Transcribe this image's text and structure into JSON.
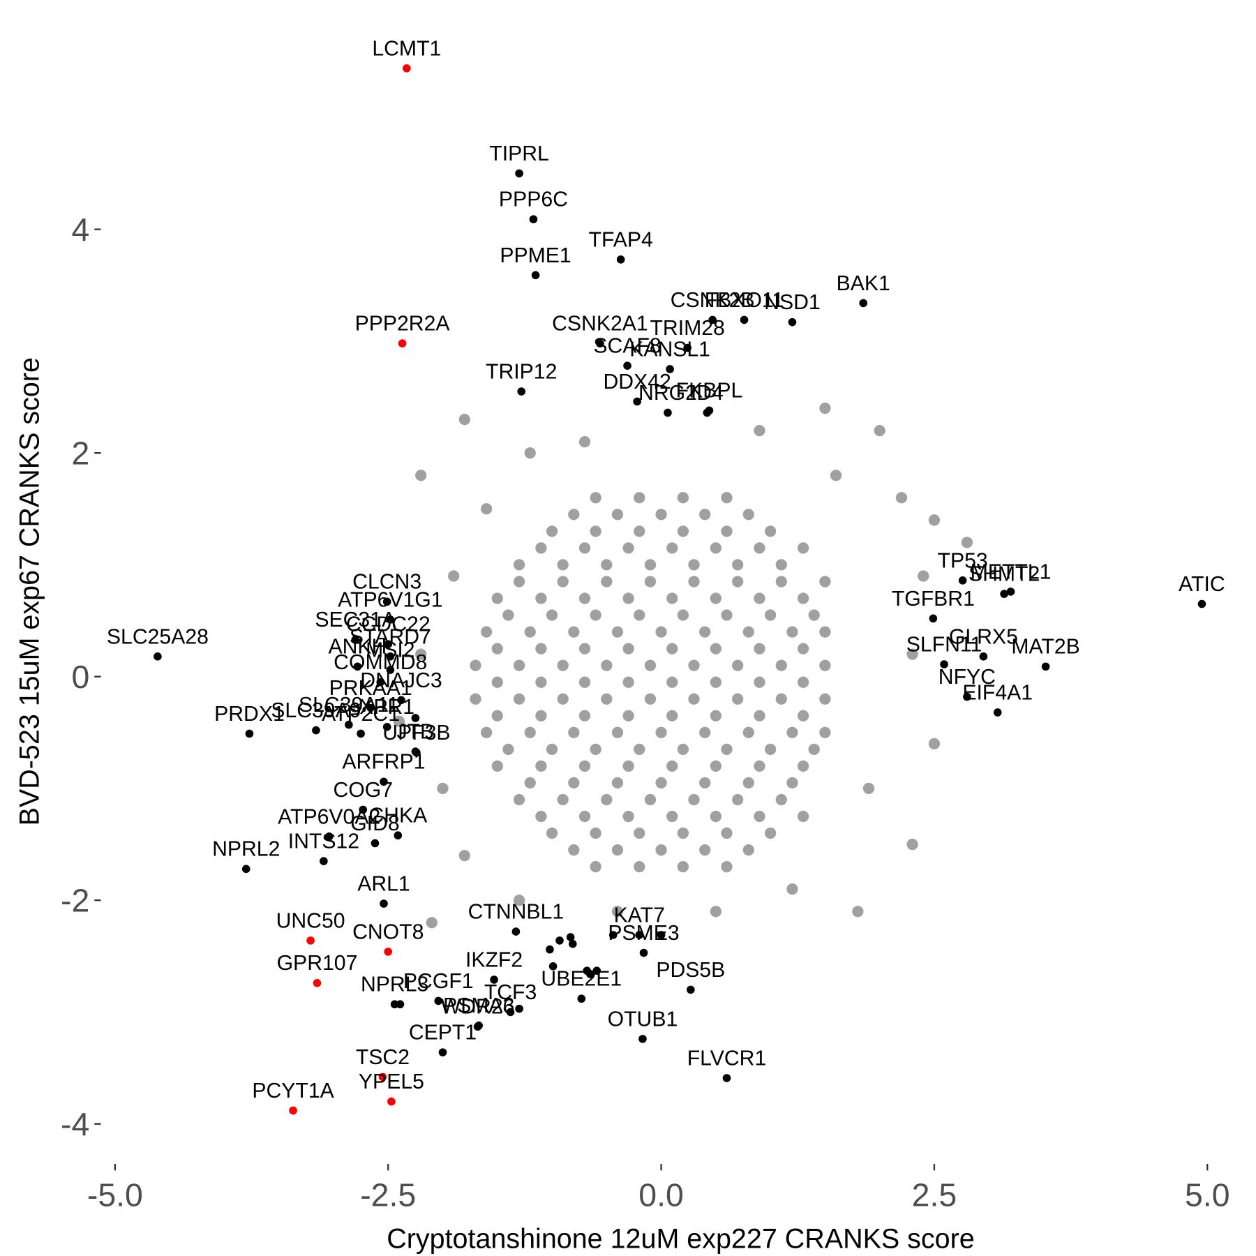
{
  "chart_data": {
    "type": "scatter",
    "x_label": "Cryptotanshinone 12uM exp227 CRANKS score",
    "y_label": "BVD-523 15uM exp67 CRANKS score",
    "xlim": [
      -5.1,
      5.05
    ],
    "ylim": [
      -4.3,
      5.65
    ],
    "xticks": [
      {
        "value": -5,
        "label": "-5.0"
      },
      {
        "value": -2.5,
        "label": "-2.5"
      },
      {
        "value": 0,
        "label": "0.0"
      },
      {
        "value": 2.5,
        "label": "2.5"
      },
      {
        "value": 5,
        "label": "5.0"
      }
    ],
    "yticks": [
      -4,
      -2,
      0,
      2,
      4
    ],
    "grid": false,
    "series": [
      {
        "color": "#a0a0a0",
        "x": [
          -0.6,
          -0.2,
          0.2,
          0.6,
          -1.0,
          -0.6,
          -0.2,
          0.2,
          0.6,
          1.0,
          -1.3,
          -0.9,
          -0.5,
          -0.1,
          0.3,
          0.7,
          1.1,
          -1.5,
          -1.1,
          -0.7,
          -0.3,
          0.1,
          0.5,
          0.9,
          1.3,
          -1.6,
          -1.2,
          -0.8,
          -0.4,
          0,
          0.4,
          0.8,
          1.2,
          1.5,
          -1.7,
          -1.3,
          -0.9,
          -0.5,
          -0.1,
          0.3,
          0.7,
          1.1,
          1.5,
          -1.7,
          -1.3,
          -0.9,
          -0.5,
          -0.1,
          0.3,
          0.7,
          1.1,
          1.5,
          -1.6,
          -1.2,
          -0.8,
          -0.4,
          0,
          0.4,
          0.8,
          1.2,
          1.5,
          -1.5,
          -1.1,
          -0.7,
          -0.3,
          0.1,
          0.5,
          0.9,
          1.3,
          -1.3,
          -0.9,
          -0.5,
          -0.1,
          0.3,
          0.7,
          1.1,
          -1.0,
          -0.6,
          -0.2,
          0.2,
          0.6,
          1.0,
          -0.6,
          -0.2,
          0.2,
          0.6,
          -0.8,
          -0.4,
          0,
          0.4,
          0.8,
          -1.1,
          -0.7,
          -0.3,
          0.1,
          0.5,
          0.9,
          1.3,
          -1.3,
          -0.9,
          -0.5,
          -0.1,
          0.3,
          0.7,
          1.1,
          1.5,
          -1.4,
          -1.0,
          -0.6,
          -0.2,
          0.2,
          0.6,
          1.0,
          1.4,
          -1.5,
          -1.1,
          -0.7,
          -0.3,
          0.1,
          0.5,
          0.9,
          1.3,
          -1.5,
          -1.1,
          -0.7,
          -0.3,
          0.1,
          0.5,
          0.9,
          1.3,
          -1.5,
          -1.1,
          -0.7,
          -0.3,
          0.1,
          0.5,
          0.9,
          1.3,
          -1.4,
          -1.0,
          -0.6,
          -0.2,
          0.2,
          0.6,
          1.0,
          1.4,
          -1.2,
          -0.8,
          -0.4,
          0,
          0.4,
          0.8,
          1.2,
          -1.1,
          -0.7,
          -0.3,
          0.1,
          0.5,
          0.9,
          1.3,
          -0.8,
          -0.4,
          0,
          0.4,
          0.8,
          -1.8,
          -1.2,
          -0.7,
          0.9,
          1.5,
          2.0,
          2.2,
          2.5,
          2.8,
          -2.2,
          -1.9,
          -2.2,
          -2.4,
          -2.0,
          -1.8,
          -2.1,
          -1.3,
          0.5,
          1.2,
          1.8,
          2.3,
          2.5,
          2.3,
          2.4,
          1.9,
          -0.4,
          1.6,
          -1.6
        ],
        "y": [
          1.6,
          1.6,
          1.6,
          1.6,
          1.3,
          1.3,
          1.3,
          1.3,
          1.3,
          1.3,
          1.0,
          1.0,
          1.0,
          1.0,
          1.0,
          1.0,
          1.0,
          0.7,
          0.7,
          0.7,
          0.7,
          0.7,
          0.7,
          0.7,
          0.7,
          0.4,
          0.4,
          0.4,
          0.4,
          0.4,
          0.4,
          0.4,
          0.4,
          0.4,
          0.1,
          0.1,
          0.1,
          0.1,
          0.1,
          0.1,
          0.1,
          0.1,
          0.1,
          -0.2,
          -0.2,
          -0.2,
          -0.2,
          -0.2,
          -0.2,
          -0.2,
          -0.2,
          -0.2,
          -0.5,
          -0.5,
          -0.5,
          -0.5,
          -0.5,
          -0.5,
          -0.5,
          -0.5,
          -0.5,
          -0.8,
          -0.8,
          -0.8,
          -0.8,
          -0.8,
          -0.8,
          -0.8,
          -0.8,
          -1.1,
          -1.1,
          -1.1,
          -1.1,
          -1.1,
          -1.1,
          -1.1,
          -1.4,
          -1.4,
          -1.4,
          -1.4,
          -1.4,
          -1.4,
          -1.7,
          -1.7,
          -1.7,
          -1.7,
          1.45,
          1.45,
          1.45,
          1.45,
          1.45,
          1.15,
          1.15,
          1.15,
          1.15,
          1.15,
          1.15,
          1.15,
          0.85,
          0.85,
          0.85,
          0.85,
          0.85,
          0.85,
          0.85,
          0.85,
          0.55,
          0.55,
          0.55,
          0.55,
          0.55,
          0.55,
          0.55,
          0.55,
          0.25,
          0.25,
          0.25,
          0.25,
          0.25,
          0.25,
          0.25,
          0.25,
          -0.05,
          -0.05,
          -0.05,
          -0.05,
          -0.05,
          -0.05,
          -0.05,
          -0.05,
          -0.35,
          -0.35,
          -0.35,
          -0.35,
          -0.35,
          -0.35,
          -0.35,
          -0.35,
          -0.65,
          -0.65,
          -0.65,
          -0.65,
          -0.65,
          -0.65,
          -0.65,
          -0.65,
          -0.95,
          -0.95,
          -0.95,
          -0.95,
          -0.95,
          -0.95,
          -0.95,
          -1.25,
          -1.25,
          -1.25,
          -1.25,
          -1.25,
          -1.25,
          -1.25,
          -1.55,
          -1.55,
          -1.55,
          -1.55,
          -1.55,
          2.3,
          2.0,
          2.1,
          2.2,
          2.4,
          2.2,
          1.6,
          1.4,
          1.2,
          1.8,
          0.9,
          0.2,
          -0.4,
          -1.0,
          -1.6,
          -2.2,
          -2.0,
          -2.1,
          -1.9,
          -2.1,
          -1.5,
          -0.6,
          0.2,
          0.9,
          -1.0,
          -2.1,
          1.8,
          1.5
        ]
      },
      {
        "color": "#000000",
        "x": [
          -1.3,
          -1.17,
          -0.37,
          -1.15,
          0.47,
          0.76,
          1.2,
          1.85,
          -0.56,
          0.24,
          -0.31,
          0.08,
          -1.28,
          -0.22,
          0.06,
          0.42,
          0.44,
          2.76,
          3.2,
          3.14,
          2.49,
          4.95,
          2.95,
          2.59,
          3.52,
          2.8,
          3.08,
          -2.51,
          -2.48,
          -2.5,
          -2.48,
          -2.8,
          -2.78,
          -2.48,
          -2.57,
          -4.61,
          -2.66,
          -2.38,
          -2.25,
          -3.16,
          -2.86,
          -2.75,
          -2.51,
          -3.77,
          -2.25,
          -2.24,
          -2.54,
          -2.73,
          -2.41,
          -3.04,
          -2.62,
          -3.09,
          -3.8,
          -2.54,
          -2.44,
          -2.39,
          -1.33,
          -0.2,
          0.0,
          -0.16,
          -2.04,
          -1.53,
          0.27,
          -0.73,
          -1.38,
          -1.3,
          -1.68,
          -1.67,
          -0.17,
          -2.0,
          0.6,
          -1.02,
          -0.93,
          -0.83,
          -0.81,
          -0.99,
          -0.68,
          -0.59,
          -0.65,
          -0.44
        ],
        "y": [
          4.5,
          4.09,
          3.73,
          3.59,
          3.19,
          3.19,
          3.17,
          3.34,
          2.98,
          2.94,
          2.78,
          2.75,
          2.55,
          2.46,
          2.36,
          2.36,
          2.38,
          0.86,
          0.76,
          0.74,
          0.52,
          0.65,
          0.18,
          0.11,
          0.09,
          -0.18,
          -0.32,
          0.67,
          0.51,
          0.29,
          0.18,
          0.33,
          0.09,
          0.06,
          -0.05,
          0.18,
          -0.28,
          -0.21,
          -0.37,
          -0.48,
          -0.43,
          -0.51,
          -0.45,
          -0.51,
          -0.67,
          -0.68,
          -0.94,
          -1.19,
          -1.42,
          -1.43,
          -1.49,
          -1.65,
          -1.72,
          -2.03,
          -2.93,
          -2.93,
          -2.28,
          -2.31,
          -2.31,
          -2.47,
          -2.9,
          -2.71,
          -2.8,
          -2.88,
          -3.0,
          -2.97,
          -3.13,
          -3.12,
          -3.24,
          -3.36,
          -3.59,
          -2.44,
          -2.36,
          -2.33,
          -2.39,
          -2.59,
          -2.63,
          -2.63,
          -2.66,
          -2.31
        ],
        "labels": [
          "TIPRL",
          "PPP6C",
          "TFAP4",
          "PPME1",
          "CSNK2B",
          "FBXO11",
          "NSD1",
          "BAK1",
          "CSNK2A1",
          "TRIM28",
          "SCAF8",
          "KANSL1",
          "TRIP12",
          "DDX42",
          "NRG2",
          "ID4",
          "FKBPL",
          "TP53",
          "METTL1",
          "SHMT2",
          "TGFBR1",
          "ATIC",
          "GLRX5",
          "SLFN11",
          "MAT2B",
          "NFYC",
          "EIF4A1",
          "CLCN3",
          "ATP6V1G1",
          "CCDC22",
          "STARD7",
          "SEC31A",
          "ANKH",
          "MSI2",
          "COMMD8",
          "SLC25A28",
          "PRKAA1",
          "DNAJC3",
          null,
          "SLC39A9",
          "SLC39A11",
          "ATP2C1",
          "XPR1",
          "PRDX1",
          "JTB",
          "UPF3B",
          "ARFRP1",
          "COG7",
          "CHKA",
          "ATP6V0A2",
          "GID8",
          "INTS12",
          "NPRL2",
          "ARL1",
          "NPRL3",
          null,
          "CTNNBL1",
          "KAT7",
          null,
          "PSME3",
          "PCGF1",
          "IKZF2",
          "PDS5B",
          "UBE2E1",
          "TCF3",
          null,
          "WDR26",
          "PSMA3",
          "OTUB1",
          "CEPT1",
          "FLVCR1",
          null,
          null,
          null,
          null,
          null,
          null,
          null,
          null,
          null
        ]
      },
      {
        "color": "#ff0000",
        "x": [
          -2.33,
          -2.37,
          -3.21,
          -2.5,
          -3.15,
          -2.55,
          -2.47,
          -3.37
        ],
        "y": [
          5.44,
          2.98,
          -2.36,
          -2.46,
          -2.74,
          -3.58,
          -3.8,
          -3.88
        ],
        "labels": [
          "LCMT1",
          "PPP2R2A",
          "UNC50",
          "CNOT8",
          "GPR107",
          "TSC2",
          "YPEL5",
          "PCYT1A"
        ]
      }
    ]
  }
}
